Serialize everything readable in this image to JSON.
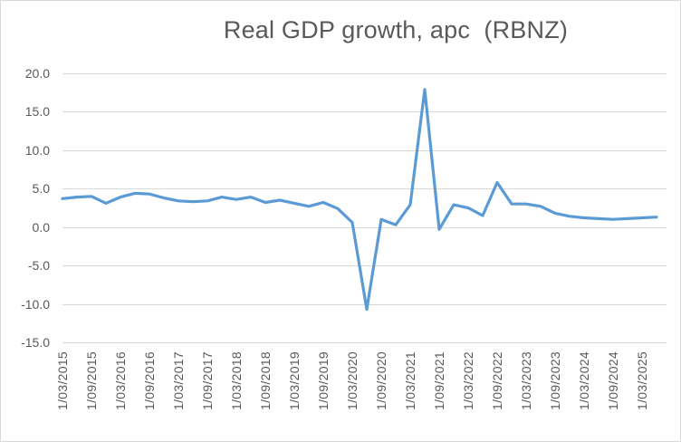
{
  "chart_data": {
    "type": "line",
    "title": "Real GDP growth, apc  (RBNZ)",
    "xlabel": "",
    "ylabel": "",
    "legend": "none",
    "grid": true,
    "ylim": [
      -15,
      20
    ],
    "y_tick_values": [
      20,
      15,
      10,
      5,
      0,
      -5,
      -10,
      -15
    ],
    "y_tick_labels": [
      "20.0",
      "15.0",
      "10.0",
      "5.0",
      "0.0",
      "-5.0",
      "-10.0",
      "-15.0"
    ],
    "x_tick_labels": [
      "1/03/2015",
      "1/09/2015",
      "1/03/2016",
      "1/09/2016",
      "1/03/2017",
      "1/09/2017",
      "1/03/2018",
      "1/09/2018",
      "1/03/2019",
      "1/09/2019",
      "1/03/2020",
      "1/09/2020",
      "1/03/2021",
      "1/09/2021",
      "1/03/2022",
      "1/09/2022",
      "1/03/2023",
      "1/09/2023",
      "1/03/2024",
      "1/09/2024",
      "1/03/2025"
    ],
    "x": [
      "1/03/2015",
      "1/06/2015",
      "1/09/2015",
      "1/12/2015",
      "1/03/2016",
      "1/06/2016",
      "1/09/2016",
      "1/12/2016",
      "1/03/2017",
      "1/06/2017",
      "1/09/2017",
      "1/12/2017",
      "1/03/2018",
      "1/06/2018",
      "1/09/2018",
      "1/12/2018",
      "1/03/2019",
      "1/06/2019",
      "1/09/2019",
      "1/12/2019",
      "1/03/2020",
      "1/06/2020",
      "1/09/2020",
      "1/12/2020",
      "1/03/2021",
      "1/06/2021",
      "1/09/2021",
      "1/12/2021",
      "1/03/2022",
      "1/06/2022",
      "1/09/2022",
      "1/12/2022",
      "1/03/2023",
      "1/06/2023",
      "1/09/2023",
      "1/12/2023",
      "1/03/2024",
      "1/06/2024",
      "1/09/2024",
      "1/12/2024",
      "1/03/2025",
      "1/06/2025"
    ],
    "values": [
      3.7,
      3.9,
      4.0,
      3.1,
      3.9,
      4.4,
      4.3,
      3.8,
      3.4,
      3.3,
      3.4,
      3.9,
      3.6,
      3.9,
      3.2,
      3.5,
      3.1,
      2.7,
      3.2,
      2.4,
      0.6,
      -10.7,
      1.0,
      0.3,
      2.9,
      17.9,
      -0.3,
      2.9,
      2.5,
      1.5,
      5.8,
      3.0,
      3.0,
      2.7,
      1.8,
      1.4,
      1.2,
      1.1,
      1.0,
      1.1,
      1.2,
      1.3
    ],
    "line_color": "#5B9BD5",
    "gridline_color": "#D9D9D9",
    "label_color": "#595959",
    "title_color": "#595959"
  }
}
